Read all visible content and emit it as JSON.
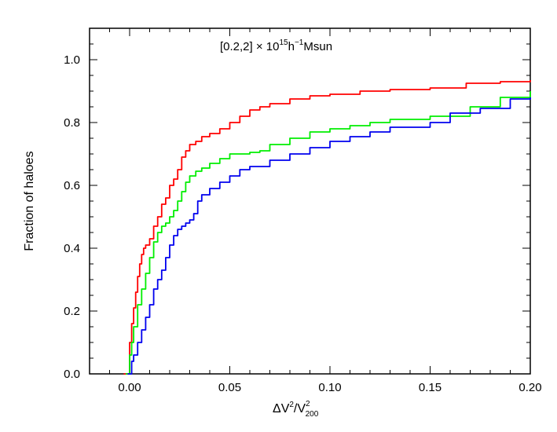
{
  "chart_data": {
    "type": "line",
    "title": "",
    "annotation": {
      "prefix": "[0.2,2] × 10",
      "sup1": "15",
      "mid": "h",
      "sup2": "−1",
      "suffix": "Msun"
    },
    "xlabel": {
      "base": "ΔV",
      "sup": "2",
      "slash": "/V",
      "sup2": "2",
      "sub2": "200"
    },
    "ylabel": "Fraction of haloes",
    "xlim": [
      -0.02,
      0.2
    ],
    "ylim": [
      0.0,
      1.1
    ],
    "xticks": [
      0.0,
      0.05,
      0.1,
      0.15,
      0.2
    ],
    "xtick_labels": [
      "0.00",
      "0.05",
      "0.10",
      "0.15",
      "0.20"
    ],
    "yticks": [
      0.0,
      0.2,
      0.4,
      0.6,
      0.8,
      1.0
    ],
    "ytick_labels": [
      "0.0",
      "0.2",
      "0.4",
      "0.6",
      "0.8",
      "1.0"
    ],
    "grid": false,
    "series": [
      {
        "color": "#ff0000",
        "x": [
          -0.003,
          0.0,
          0.001,
          0.002,
          0.003,
          0.004,
          0.005,
          0.006,
          0.007,
          0.008,
          0.01,
          0.012,
          0.014,
          0.016,
          0.018,
          0.02,
          0.022,
          0.024,
          0.026,
          0.028,
          0.03,
          0.033,
          0.036,
          0.04,
          0.045,
          0.05,
          0.055,
          0.06,
          0.065,
          0.07,
          0.08,
          0.09,
          0.1,
          0.115,
          0.13,
          0.15,
          0.168,
          0.185,
          0.2
        ],
        "y": [
          0.0,
          0.1,
          0.16,
          0.21,
          0.26,
          0.31,
          0.35,
          0.38,
          0.4,
          0.41,
          0.43,
          0.47,
          0.5,
          0.54,
          0.56,
          0.6,
          0.62,
          0.65,
          0.69,
          0.71,
          0.73,
          0.74,
          0.755,
          0.765,
          0.78,
          0.8,
          0.82,
          0.84,
          0.85,
          0.86,
          0.875,
          0.885,
          0.89,
          0.9,
          0.905,
          0.91,
          0.925,
          0.93,
          0.935
        ]
      },
      {
        "color": "#00ee00",
        "x": [
          -0.002,
          0.0,
          0.001,
          0.002,
          0.004,
          0.006,
          0.008,
          0.01,
          0.012,
          0.014,
          0.016,
          0.018,
          0.02,
          0.022,
          0.024,
          0.026,
          0.028,
          0.03,
          0.033,
          0.036,
          0.04,
          0.045,
          0.05,
          0.06,
          0.065,
          0.07,
          0.08,
          0.09,
          0.1,
          0.11,
          0.12,
          0.13,
          0.15,
          0.17,
          0.185,
          0.2
        ],
        "y": [
          0.0,
          0.06,
          0.1,
          0.15,
          0.22,
          0.27,
          0.32,
          0.37,
          0.42,
          0.45,
          0.47,
          0.48,
          0.5,
          0.52,
          0.55,
          0.58,
          0.61,
          0.63,
          0.645,
          0.655,
          0.67,
          0.685,
          0.7,
          0.705,
          0.71,
          0.73,
          0.75,
          0.77,
          0.78,
          0.79,
          0.8,
          0.81,
          0.82,
          0.85,
          0.88,
          0.9
        ]
      },
      {
        "color": "#0000ee",
        "x": [
          -0.001,
          0.001,
          0.002,
          0.004,
          0.006,
          0.008,
          0.01,
          0.012,
          0.014,
          0.016,
          0.018,
          0.02,
          0.022,
          0.024,
          0.026,
          0.028,
          0.03,
          0.032,
          0.034,
          0.036,
          0.04,
          0.045,
          0.05,
          0.055,
          0.06,
          0.07,
          0.08,
          0.09,
          0.1,
          0.11,
          0.12,
          0.13,
          0.15,
          0.16,
          0.175,
          0.19,
          0.2
        ],
        "y": [
          0.0,
          0.04,
          0.06,
          0.1,
          0.14,
          0.18,
          0.22,
          0.27,
          0.3,
          0.33,
          0.37,
          0.41,
          0.44,
          0.46,
          0.47,
          0.48,
          0.49,
          0.51,
          0.55,
          0.57,
          0.59,
          0.61,
          0.63,
          0.65,
          0.66,
          0.68,
          0.7,
          0.72,
          0.74,
          0.755,
          0.77,
          0.785,
          0.8,
          0.83,
          0.845,
          0.875,
          0.88
        ]
      }
    ]
  }
}
